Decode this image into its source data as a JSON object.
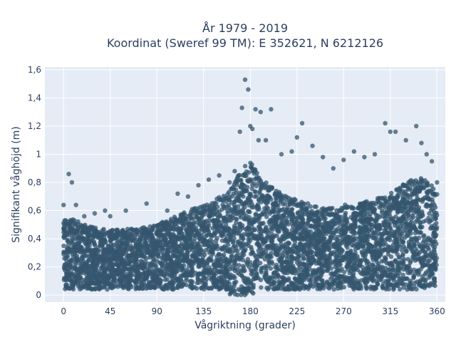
{
  "chart_data": {
    "type": "scatter",
    "title_line1": "År 1979 - 2019",
    "title_line2": "Koordinat (Sweref 99 TM): E 352621, N 6212126",
    "xlabel": "Vågriktning (grader)",
    "ylabel": "Signifikant våghöjd (m)",
    "xlim": [
      -18,
      368
    ],
    "ylim": [
      -0.05,
      1.62
    ],
    "x_ticks": [
      0,
      45,
      90,
      135,
      180,
      225,
      270,
      315,
      360
    ],
    "x_tick_labels": [
      "0",
      "45",
      "90",
      "135",
      "180",
      "225",
      "270",
      "315",
      "360"
    ],
    "y_ticks": [
      0,
      0.2,
      0.4,
      0.6,
      0.8,
      1.0,
      1.2,
      1.4,
      1.6
    ],
    "y_tick_labels": [
      "0",
      "0,2",
      "0,4",
      "0,6",
      "0,8",
      "1",
      "1,2",
      "1,4",
      "1,6"
    ],
    "grid": true,
    "marker_color": "#34566d",
    "plot_bg": "#e5ecf6",
    "series": [
      {
        "x": [
          0,
          5,
          8,
          12,
          20,
          30,
          40,
          45,
          60,
          80,
          100,
          110,
          120,
          130,
          140,
          150,
          160,
          165,
          170,
          172,
          175,
          178,
          180,
          182,
          185,
          188,
          190,
          195,
          200,
          210,
          220,
          225,
          230,
          240,
          250,
          260,
          270,
          280,
          290,
          300,
          310,
          315,
          320,
          330,
          340,
          345,
          350,
          355,
          360
        ],
        "y": [
          0.64,
          0.86,
          0.8,
          0.64,
          0.56,
          0.58,
          0.6,
          0.56,
          0.6,
          0.65,
          0.6,
          0.72,
          0.7,
          0.78,
          0.82,
          0.85,
          0.8,
          0.88,
          1.16,
          1.33,
          1.53,
          1.46,
          1.2,
          1.18,
          1.32,
          1.1,
          1.3,
          1.1,
          1.32,
          1.0,
          1.02,
          1.12,
          1.22,
          1.06,
          0.98,
          0.9,
          0.96,
          1.02,
          0.98,
          1.0,
          1.22,
          1.16,
          1.16,
          1.1,
          1.2,
          1.08,
          1.0,
          0.95,
          0.8
        ]
      }
    ]
  }
}
